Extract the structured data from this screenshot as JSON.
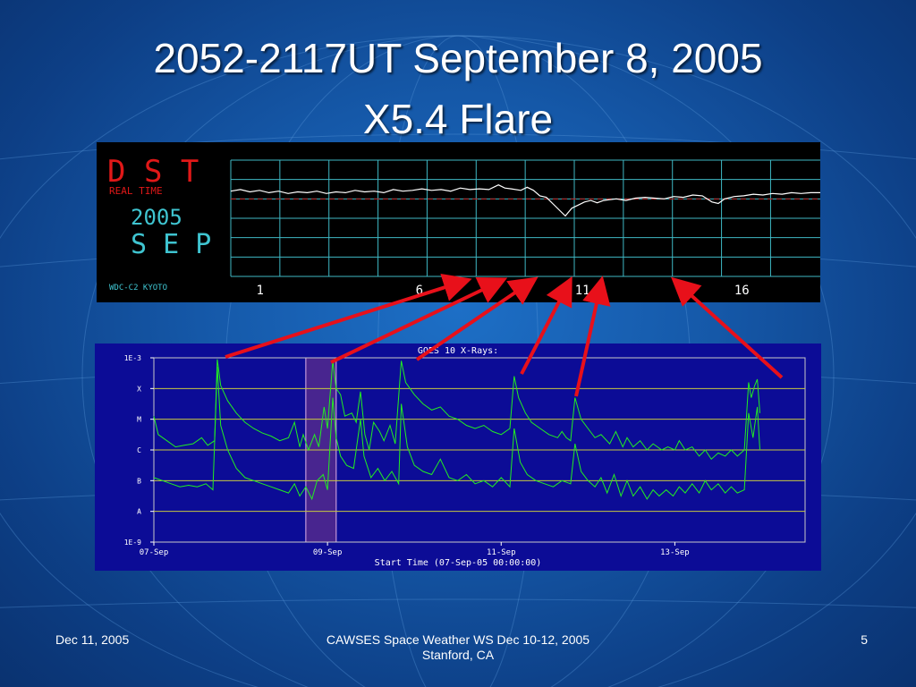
{
  "slide": {
    "title_line1": "2052-2117UT September 8, 2005",
    "title_line2": "X5.4 Flare",
    "footer_left": "Dec 11, 2005",
    "footer_center": "CAWSES Space Weather WS Dec 10-12, 2005 Stanford, CA",
    "footer_right": "5"
  },
  "colors": {
    "background": "#1558a8",
    "arrow": "#e8101a",
    "dst_grid": "#3fb8c4",
    "dst_trace": "#ffffff",
    "dst_label": "#e01818",
    "dst_year": "#3fc4d0",
    "goes_bg": "#0c0c96",
    "goes_trace": "#22ee22",
    "goes_grid": "#c8c840",
    "goes_highlight": "#7a3a8a"
  },
  "chart_data": [
    {
      "type": "line",
      "title": "DST",
      "labels": {
        "dst": "D S T",
        "realtime": "REAL TIME",
        "year": "2005",
        "month": "S E P",
        "credit": "WDC-C2 KYOTO"
      },
      "x_ticks": [
        "1",
        "6",
        "11",
        "16"
      ],
      "x_tick_days": [
        1,
        6,
        11,
        16
      ],
      "xlim": [
        0,
        18.5
      ],
      "ylim": [
        -100,
        50
      ],
      "trace": [
        [
          0.0,
          10
        ],
        [
          0.3,
          12
        ],
        [
          0.6,
          9
        ],
        [
          0.9,
          11
        ],
        [
          1.2,
          8
        ],
        [
          1.5,
          10
        ],
        [
          1.8,
          7
        ],
        [
          2.1,
          9
        ],
        [
          2.4,
          8
        ],
        [
          2.7,
          10
        ],
        [
          3.0,
          7
        ],
        [
          3.3,
          9
        ],
        [
          3.6,
          8
        ],
        [
          3.9,
          11
        ],
        [
          4.2,
          9
        ],
        [
          4.5,
          10
        ],
        [
          4.8,
          8
        ],
        [
          5.1,
          12
        ],
        [
          5.4,
          10
        ],
        [
          5.7,
          11
        ],
        [
          6.0,
          13
        ],
        [
          6.3,
          11
        ],
        [
          6.6,
          12
        ],
        [
          6.9,
          10
        ],
        [
          7.2,
          14
        ],
        [
          7.5,
          12
        ],
        [
          7.8,
          13
        ],
        [
          8.1,
          12
        ],
        [
          8.4,
          18
        ],
        [
          8.6,
          14
        ],
        [
          8.8,
          13
        ],
        [
          9.1,
          11
        ],
        [
          9.3,
          15
        ],
        [
          9.5,
          11
        ],
        [
          9.7,
          4
        ],
        [
          9.9,
          2
        ],
        [
          10.1,
          -6
        ],
        [
          10.3,
          -14
        ],
        [
          10.5,
          -22
        ],
        [
          10.7,
          -12
        ],
        [
          10.9,
          -8
        ],
        [
          11.1,
          -4
        ],
        [
          11.3,
          -2
        ],
        [
          11.5,
          -5
        ],
        [
          11.7,
          -2
        ],
        [
          11.9,
          -1
        ],
        [
          12.1,
          0
        ],
        [
          12.4,
          -2
        ],
        [
          12.7,
          1
        ],
        [
          13.0,
          2
        ],
        [
          13.3,
          1
        ],
        [
          13.6,
          0
        ],
        [
          13.9,
          3
        ],
        [
          14.2,
          2
        ],
        [
          14.5,
          5
        ],
        [
          14.8,
          4
        ],
        [
          15.1,
          -4
        ],
        [
          15.3,
          -6
        ],
        [
          15.5,
          0
        ],
        [
          15.8,
          3
        ],
        [
          16.1,
          4
        ],
        [
          16.4,
          6
        ],
        [
          16.7,
          5
        ],
        [
          17.0,
          7
        ],
        [
          17.3,
          6
        ],
        [
          17.6,
          8
        ],
        [
          17.9,
          7
        ],
        [
          18.2,
          8
        ],
        [
          18.5,
          8
        ]
      ]
    },
    {
      "type": "line",
      "title": "GOES 10 X-Rays:",
      "xlabel": "Start Time (07-Sep-05 00:00:00)",
      "y_ticks": [
        "1E-3",
        "X",
        "M",
        "C",
        "B",
        "A",
        "1E-9"
      ],
      "y_tick_values": [
        -3,
        -4,
        -5,
        -6,
        -7,
        -8,
        -9
      ],
      "x_ticks": [
        "07-Sep",
        "09-Sep",
        "11-Sep",
        "13-Sep"
      ],
      "x_tick_days": [
        0,
        2,
        4,
        6
      ],
      "xlim": [
        0,
        7.5
      ],
      "ylim": [
        -9,
        -3
      ],
      "highlight_days": [
        1.75,
        2.1
      ],
      "series": [
        {
          "values": [
            [
              0.0,
              -4.9
            ],
            [
              0.05,
              -5.5
            ],
            [
              0.15,
              -5.7
            ],
            [
              0.25,
              -5.9
            ],
            [
              0.35,
              -5.85
            ],
            [
              0.45,
              -5.8
            ],
            [
              0.55,
              -5.6
            ],
            [
              0.62,
              -5.85
            ],
            [
              0.7,
              -5.7
            ],
            [
              0.73,
              -3.05
            ],
            [
              0.77,
              -3.9
            ],
            [
              0.85,
              -4.4
            ],
            [
              0.95,
              -4.8
            ],
            [
              1.05,
              -5.1
            ],
            [
              1.15,
              -5.3
            ],
            [
              1.25,
              -5.45
            ],
            [
              1.35,
              -5.55
            ],
            [
              1.45,
              -5.7
            ],
            [
              1.55,
              -5.6
            ],
            [
              1.62,
              -5.1
            ],
            [
              1.68,
              -5.9
            ],
            [
              1.72,
              -5.5
            ],
            [
              1.78,
              -6.0
            ],
            [
              1.85,
              -5.5
            ],
            [
              1.9,
              -5.9
            ],
            [
              1.96,
              -4.6
            ],
            [
              2.0,
              -5.3
            ],
            [
              2.06,
              -3.1
            ],
            [
              2.1,
              -4.0
            ],
            [
              2.15,
              -4.2
            ],
            [
              2.2,
              -4.9
            ],
            [
              2.28,
              -4.8
            ],
            [
              2.33,
              -5.1
            ],
            [
              2.38,
              -4.1
            ],
            [
              2.43,
              -5.5
            ],
            [
              2.48,
              -6.0
            ],
            [
              2.53,
              -5.1
            ],
            [
              2.6,
              -5.4
            ],
            [
              2.65,
              -5.7
            ],
            [
              2.72,
              -5.2
            ],
            [
              2.78,
              -5.8
            ],
            [
              2.85,
              -3.1
            ],
            [
              2.9,
              -3.8
            ],
            [
              3.0,
              -4.2
            ],
            [
              3.1,
              -4.5
            ],
            [
              3.2,
              -4.7
            ],
            [
              3.3,
              -4.6
            ],
            [
              3.4,
              -4.9
            ],
            [
              3.5,
              -5.0
            ],
            [
              3.6,
              -5.2
            ],
            [
              3.7,
              -5.3
            ],
            [
              3.8,
              -5.2
            ],
            [
              3.9,
              -5.4
            ],
            [
              4.0,
              -5.5
            ],
            [
              4.1,
              -5.3
            ],
            [
              4.15,
              -3.6
            ],
            [
              4.2,
              -4.3
            ],
            [
              4.28,
              -4.8
            ],
            [
              4.35,
              -5.1
            ],
            [
              4.45,
              -5.3
            ],
            [
              4.55,
              -5.5
            ],
            [
              4.65,
              -5.6
            ],
            [
              4.7,
              -5.4
            ],
            [
              4.75,
              -5.6
            ],
            [
              4.8,
              -5.7
            ],
            [
              4.85,
              -4.3
            ],
            [
              4.92,
              -5.0
            ],
            [
              5.0,
              -5.3
            ],
            [
              5.08,
              -5.6
            ],
            [
              5.15,
              -5.5
            ],
            [
              5.25,
              -5.8
            ],
            [
              5.32,
              -5.4
            ],
            [
              5.4,
              -5.9
            ],
            [
              5.45,
              -5.6
            ],
            [
              5.52,
              -5.9
            ],
            [
              5.6,
              -5.7
            ],
            [
              5.68,
              -6.0
            ],
            [
              5.75,
              -5.8
            ],
            [
              5.85,
              -6.0
            ],
            [
              5.92,
              -5.9
            ],
            [
              6.0,
              -6.0
            ],
            [
              6.05,
              -5.7
            ],
            [
              6.12,
              -6.0
            ],
            [
              6.2,
              -5.9
            ],
            [
              6.28,
              -6.2
            ],
            [
              6.35,
              -6.0
            ],
            [
              6.42,
              -6.3
            ],
            [
              6.5,
              -6.1
            ],
            [
              6.58,
              -6.2
            ],
            [
              6.65,
              -6.0
            ],
            [
              6.72,
              -6.2
            ],
            [
              6.8,
              -6.0
            ],
            [
              6.85,
              -3.8
            ],
            [
              6.88,
              -4.3
            ],
            [
              6.92,
              -3.9
            ],
            [
              6.95,
              -3.7
            ],
            [
              6.98,
              -4.8
            ]
          ]
        },
        {
          "values": [
            [
              0.0,
              -6.9
            ],
            [
              0.1,
              -7.0
            ],
            [
              0.2,
              -7.1
            ],
            [
              0.3,
              -7.2
            ],
            [
              0.4,
              -7.15
            ],
            [
              0.5,
              -7.2
            ],
            [
              0.6,
              -7.1
            ],
            [
              0.68,
              -7.3
            ],
            [
              0.73,
              -3.3
            ],
            [
              0.77,
              -5.2
            ],
            [
              0.85,
              -6.0
            ],
            [
              0.95,
              -6.6
            ],
            [
              1.05,
              -6.9
            ],
            [
              1.15,
              -7.0
            ],
            [
              1.25,
              -7.1
            ],
            [
              1.35,
              -7.2
            ],
            [
              1.45,
              -7.3
            ],
            [
              1.55,
              -7.4
            ],
            [
              1.62,
              -7.1
            ],
            [
              1.68,
              -7.5
            ],
            [
              1.75,
              -7.2
            ],
            [
              1.82,
              -7.6
            ],
            [
              1.88,
              -7.0
            ],
            [
              1.95,
              -6.8
            ],
            [
              2.0,
              -7.3
            ],
            [
              2.06,
              -4.3
            ],
            [
              2.1,
              -5.6
            ],
            [
              2.15,
              -6.2
            ],
            [
              2.22,
              -6.5
            ],
            [
              2.3,
              -6.6
            ],
            [
              2.38,
              -5.0
            ],
            [
              2.42,
              -6.2
            ],
            [
              2.5,
              -6.9
            ],
            [
              2.58,
              -6.6
            ],
            [
              2.66,
              -7.0
            ],
            [
              2.74,
              -6.7
            ],
            [
              2.82,
              -7.1
            ],
            [
              2.85,
              -4.5
            ],
            [
              2.92,
              -5.9
            ],
            [
              3.0,
              -6.5
            ],
            [
              3.1,
              -6.7
            ],
            [
              3.2,
              -6.8
            ],
            [
              3.3,
              -6.3
            ],
            [
              3.4,
              -6.9
            ],
            [
              3.5,
              -7.0
            ],
            [
              3.6,
              -6.8
            ],
            [
              3.7,
              -7.1
            ],
            [
              3.8,
              -7.0
            ],
            [
              3.9,
              -7.2
            ],
            [
              4.0,
              -6.9
            ],
            [
              4.1,
              -7.2
            ],
            [
              4.15,
              -5.3
            ],
            [
              4.22,
              -6.4
            ],
            [
              4.3,
              -6.8
            ],
            [
              4.4,
              -7.0
            ],
            [
              4.5,
              -7.1
            ],
            [
              4.6,
              -7.2
            ],
            [
              4.7,
              -7.0
            ],
            [
              4.8,
              -7.1
            ],
            [
              4.85,
              -5.8
            ],
            [
              4.92,
              -6.7
            ],
            [
              5.0,
              -7.0
            ],
            [
              5.08,
              -7.2
            ],
            [
              5.15,
              -6.9
            ],
            [
              5.22,
              -7.4
            ],
            [
              5.3,
              -6.8
            ],
            [
              5.38,
              -7.5
            ],
            [
              5.45,
              -7.0
            ],
            [
              5.52,
              -7.5
            ],
            [
              5.6,
              -7.2
            ],
            [
              5.68,
              -7.6
            ],
            [
              5.75,
              -7.3
            ],
            [
              5.82,
              -7.5
            ],
            [
              5.9,
              -7.3
            ],
            [
              5.98,
              -7.5
            ],
            [
              6.05,
              -7.2
            ],
            [
              6.12,
              -7.4
            ],
            [
              6.2,
              -7.1
            ],
            [
              6.28,
              -7.4
            ],
            [
              6.35,
              -7.0
            ],
            [
              6.42,
              -7.3
            ],
            [
              6.5,
              -7.1
            ],
            [
              6.58,
              -7.4
            ],
            [
              6.65,
              -7.2
            ],
            [
              6.72,
              -7.4
            ],
            [
              6.8,
              -7.3
            ],
            [
              6.85,
              -4.8
            ],
            [
              6.9,
              -5.6
            ],
            [
              6.95,
              -4.6
            ],
            [
              6.98,
              -6.0
            ]
          ]
        }
      ]
    }
  ]
}
